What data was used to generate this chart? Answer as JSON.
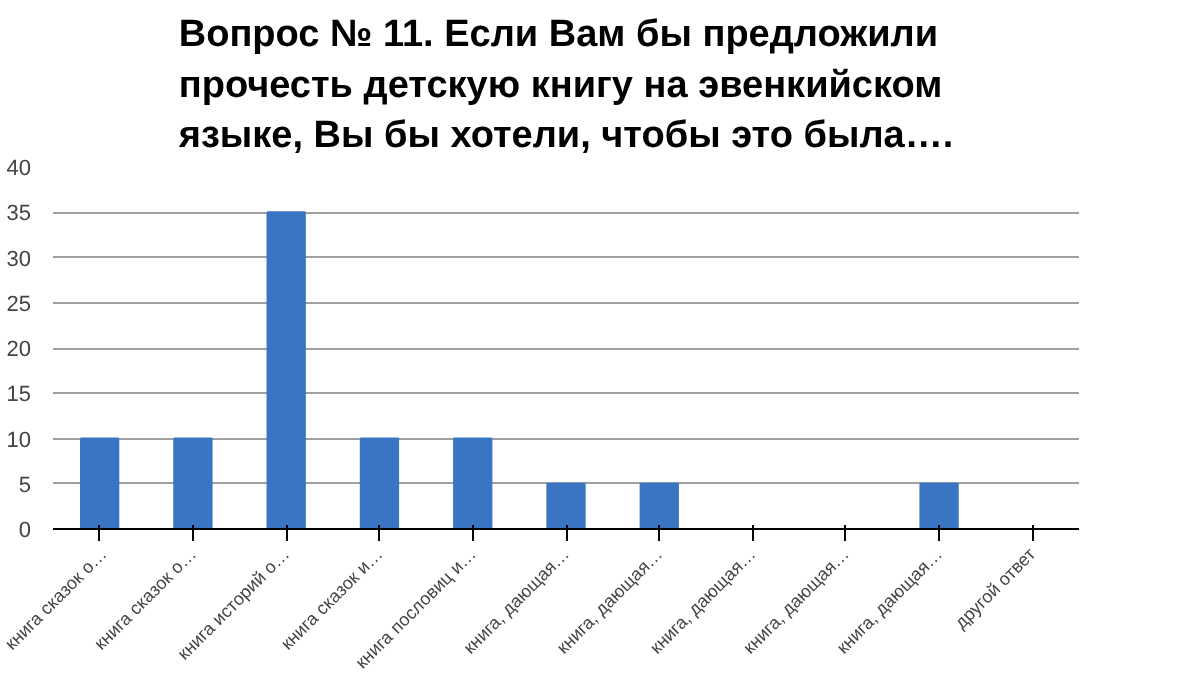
{
  "chart_data": {
    "type": "bar",
    "title": "Вопрос № 11. Если Вам бы предложили прочесть детскую книгу на эвенкийском языке, Вы бы хотели, чтобы это была….",
    "categories": [
      "книга сказок о…",
      "книга сказок о…",
      "книга историй о…",
      "книга сказок и…",
      "книга пословиц и…",
      "книга, дающая…",
      "книга, дающая…",
      "книга, дающая…",
      "книга, дающая…",
      "книга, дающая…",
      "другой ответ"
    ],
    "values": [
      10,
      10,
      35,
      10,
      10,
      5,
      5,
      0,
      0,
      5,
      0
    ],
    "color": "#3a75c4",
    "ylim": [
      0,
      40
    ],
    "yticks": [
      0,
      5,
      10,
      15,
      20,
      25,
      30,
      35,
      40
    ],
    "grid": "y"
  }
}
